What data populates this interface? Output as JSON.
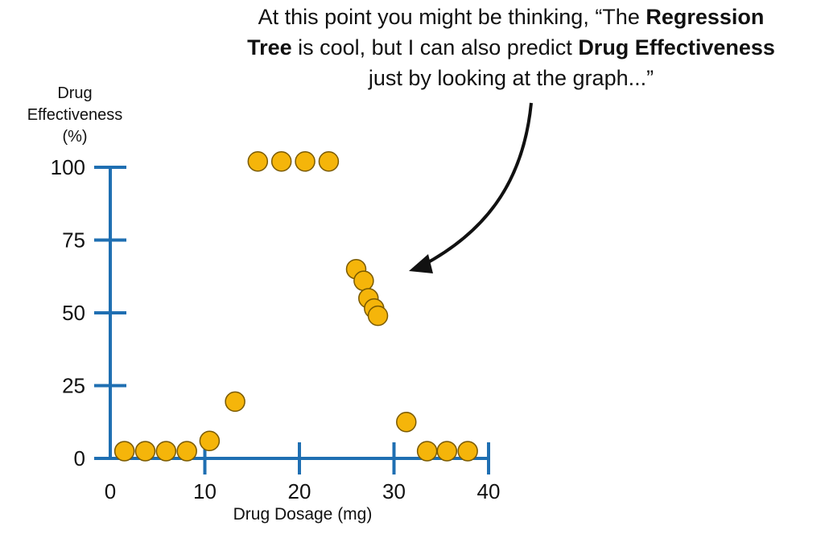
{
  "caption": {
    "part1": "At this point you might be thinking, “The ",
    "bold1": "Regression",
    "part2_pre": "",
    "bold2": "Tree",
    "part2": " is cool, but I can also predict ",
    "bold3": "Drug Effectiveness",
    "part3": "just by looking at the graph...”"
  },
  "colors": {
    "axis": "#1f6fb2",
    "point_fill": "#f5b50a",
    "point_stroke": "#7a5a00",
    "arrow": "#111111"
  },
  "chart_data": {
    "type": "scatter",
    "ylabel_lines": [
      "Drug",
      "Effectiveness",
      "(%)"
    ],
    "xlabel": "Drug Dosage (mg)",
    "xlim": [
      0,
      40
    ],
    "ylim": [
      0,
      100
    ],
    "xticks": [
      0,
      10,
      20,
      30,
      40
    ],
    "yticks": [
      0,
      25,
      50,
      75,
      100
    ],
    "points": [
      {
        "x": 1.5,
        "y": 2.5
      },
      {
        "x": 3.7,
        "y": 2.5
      },
      {
        "x": 5.9,
        "y": 2.5
      },
      {
        "x": 8.1,
        "y": 2.5
      },
      {
        "x": 10.5,
        "y": 6
      },
      {
        "x": 13.2,
        "y": 19.5
      },
      {
        "x": 15.6,
        "y": 102
      },
      {
        "x": 18.1,
        "y": 102
      },
      {
        "x": 20.6,
        "y": 102
      },
      {
        "x": 23.1,
        "y": 102
      },
      {
        "x": 26.0,
        "y": 65
      },
      {
        "x": 26.8,
        "y": 61
      },
      {
        "x": 27.3,
        "y": 55
      },
      {
        "x": 27.9,
        "y": 51.5
      },
      {
        "x": 28.3,
        "y": 49
      },
      {
        "x": 31.3,
        "y": 12.5
      },
      {
        "x": 33.5,
        "y": 2.5
      },
      {
        "x": 35.6,
        "y": 2.5
      },
      {
        "x": 37.8,
        "y": 2.5
      }
    ]
  }
}
